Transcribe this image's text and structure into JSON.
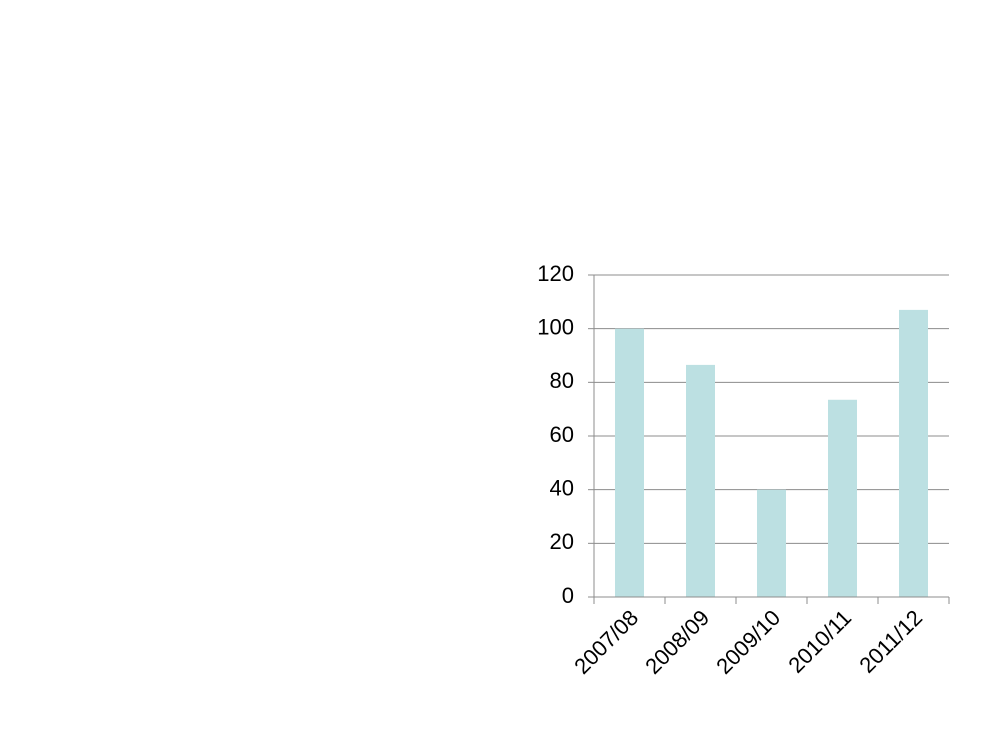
{
  "chart_data": {
    "type": "bar",
    "categories": [
      "2007/08",
      "2008/09",
      "2009/10",
      "2010/11",
      "2011/12"
    ],
    "values": [
      100,
      86.5,
      40,
      73.5,
      107
    ],
    "color": "#bce0e2",
    "ylim": [
      0,
      120
    ],
    "yticks": [
      0,
      20,
      40,
      60,
      80,
      100,
      120
    ],
    "grid": true
  }
}
